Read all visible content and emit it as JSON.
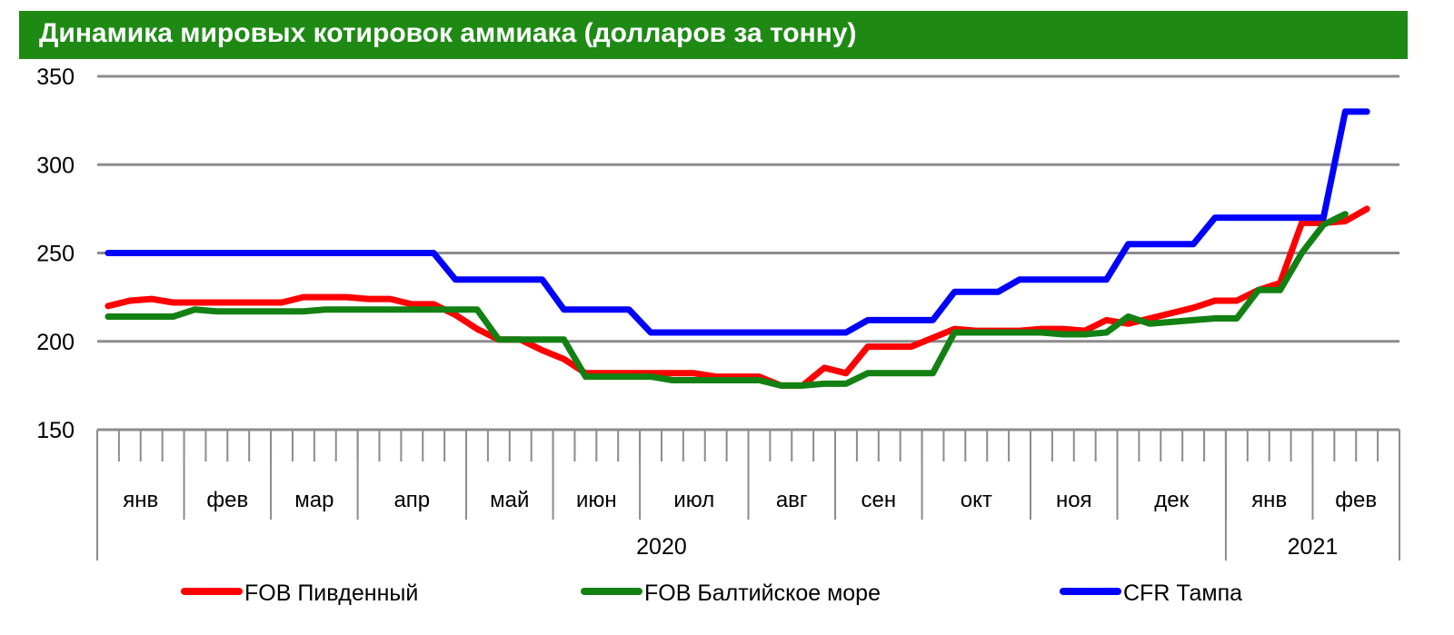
{
  "header": {
    "title": "Динамика мировых котировок аммиака  (долларов за тонну)"
  },
  "colors": {
    "title_bg": "#1e8a14",
    "grid": "#8c8c8c"
  },
  "chart_data": {
    "type": "line",
    "title": "Динамика мировых котировок аммиака  (долларов за тонну)",
    "ylim": [
      150,
      350
    ],
    "yticks": [
      150,
      200,
      250,
      300,
      350
    ],
    "grid": true,
    "legend_position": "bottom",
    "x_units": "weeks (Jan 2020 – Feb 2021)",
    "month_labels": [
      "янв",
      "фев",
      "мар",
      "апр",
      "май",
      "июн",
      "июл",
      "авг",
      "сен",
      "окт",
      "ноя",
      "дек",
      "янв",
      "фев"
    ],
    "month_weeks": [
      4,
      4,
      4,
      5,
      4,
      4,
      5,
      4,
      4,
      5,
      4,
      5,
      4,
      4
    ],
    "year_labels": [
      {
        "label": "2020",
        "months": 12
      },
      {
        "label": "2021",
        "months": 2
      }
    ],
    "series": [
      {
        "name": "FOB Пивденный",
        "color": "#ff0000",
        "values": [
          220,
          223,
          224,
          222,
          222,
          222,
          222,
          222,
          222,
          225,
          225,
          225,
          224,
          224,
          221,
          221,
          215,
          207,
          201,
          201,
          195,
          190,
          182,
          182,
          182,
          182,
          182,
          182,
          180,
          180,
          180,
          175,
          175,
          185,
          182,
          197,
          197,
          197,
          202,
          207,
          206,
          206,
          206,
          207,
          207,
          206,
          212,
          210,
          213,
          216,
          219,
          223,
          223,
          229,
          233,
          267,
          267,
          268,
          275
        ],
        "x_start": 0
      },
      {
        "name": "FOB Балтийское  море",
        "color": "#138013",
        "values": [
          214,
          214,
          214,
          214,
          218,
          217,
          217,
          217,
          217,
          217,
          218,
          218,
          218,
          218,
          218,
          218,
          218,
          218,
          201,
          201,
          201,
          201,
          180,
          180,
          180,
          180,
          178,
          178,
          178,
          178,
          178,
          175,
          175,
          176,
          176,
          182,
          182,
          182,
          182,
          205,
          205,
          205,
          205,
          205,
          204,
          204,
          205,
          214,
          210,
          211,
          212,
          213,
          213,
          229,
          229,
          250,
          266,
          272
        ],
        "x_start": 0
      },
      {
        "name": "CFR Тампа",
        "color": "#0000ff",
        "values": [
          250,
          250,
          250,
          250,
          250,
          250,
          250,
          250,
          250,
          250,
          250,
          250,
          250,
          250,
          250,
          250,
          235,
          235,
          235,
          235,
          235,
          218,
          218,
          218,
          218,
          205,
          205,
          205,
          205,
          205,
          205,
          205,
          205,
          205,
          205,
          212,
          212,
          212,
          212,
          228,
          228,
          228,
          235,
          235,
          235,
          235,
          235,
          255,
          255,
          255,
          255,
          270,
          270,
          270,
          270,
          270,
          270,
          330,
          330
        ],
        "x_start": 0
      }
    ]
  }
}
